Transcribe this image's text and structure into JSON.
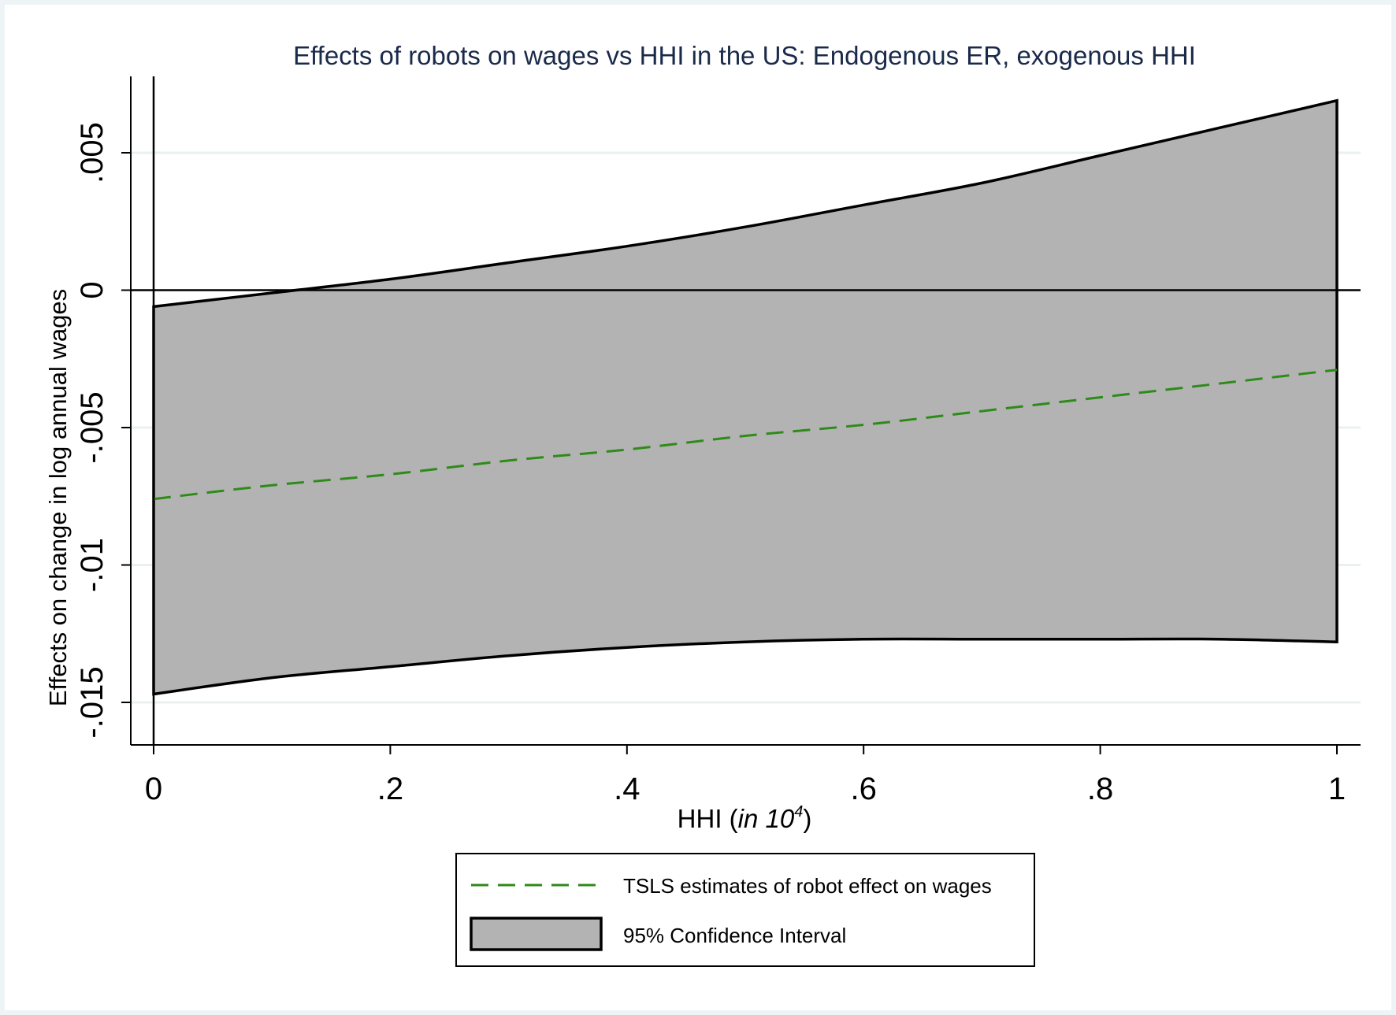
{
  "chart_data": {
    "type": "area",
    "title": "Effects of robots on wages vs HHI in the US: Endogenous ER, exogenous HHI",
    "xlabel": {
      "prefix": "HHI (",
      "italic": "in 10",
      "superscript": "4",
      "suffix": ")"
    },
    "ylabel": "Effects on change in log annual wages",
    "xlim": [
      0,
      1
    ],
    "ylim": [
      -0.0165,
      0.0077
    ],
    "x_ticks": [
      {
        "value": 0,
        "label": "0"
      },
      {
        "value": 0.2,
        "label": ".2"
      },
      {
        "value": 0.4,
        "label": ".4"
      },
      {
        "value": 0.6,
        "label": ".6"
      },
      {
        "value": 0.8,
        "label": ".8"
      },
      {
        "value": 1,
        "label": "1"
      }
    ],
    "y_ticks": [
      {
        "value": 0.005,
        "label": ".005"
      },
      {
        "value": 0,
        "label": "0"
      },
      {
        "value": -0.005,
        "label": "-.005"
      },
      {
        "value": -0.01,
        "label": "-.01"
      },
      {
        "value": -0.015,
        "label": "-.015"
      }
    ],
    "grid": true,
    "reference_line_y": 0,
    "x": [
      0,
      0.1,
      0.2,
      0.3,
      0.4,
      0.5,
      0.6,
      0.7,
      0.8,
      0.9,
      1.0
    ],
    "series": [
      {
        "name": "TSLS estimates of robot effect on wages",
        "style": "dashed",
        "color": "#2e8b1a",
        "values": [
          -0.0076,
          -0.0071,
          -0.0067,
          -0.0062,
          -0.0058,
          -0.0053,
          -0.0049,
          -0.0044,
          -0.0039,
          -0.0034,
          -0.0029
        ]
      },
      {
        "name": "95% Confidence Interval",
        "style": "band",
        "fill": "#b3b3b3",
        "lower": [
          -0.0147,
          -0.0141,
          -0.0137,
          -0.0133,
          -0.013,
          -0.0128,
          -0.0127,
          -0.0127,
          -0.0127,
          -0.0127,
          -0.0128
        ],
        "upper": [
          -0.0006,
          -0.0001,
          0.0004,
          0.001,
          0.0016,
          0.0023,
          0.0031,
          0.0039,
          0.0049,
          0.0059,
          0.0069
        ]
      }
    ],
    "legend": {
      "placement": "bottom-center",
      "entries": [
        {
          "label": "TSLS estimates of robot effect on wages",
          "symbol": "dashed-line",
          "color": "#2e8b1a"
        },
        {
          "label": "95% Confidence Interval",
          "symbol": "filled-box",
          "color": "#b3b3b3"
        }
      ]
    }
  }
}
